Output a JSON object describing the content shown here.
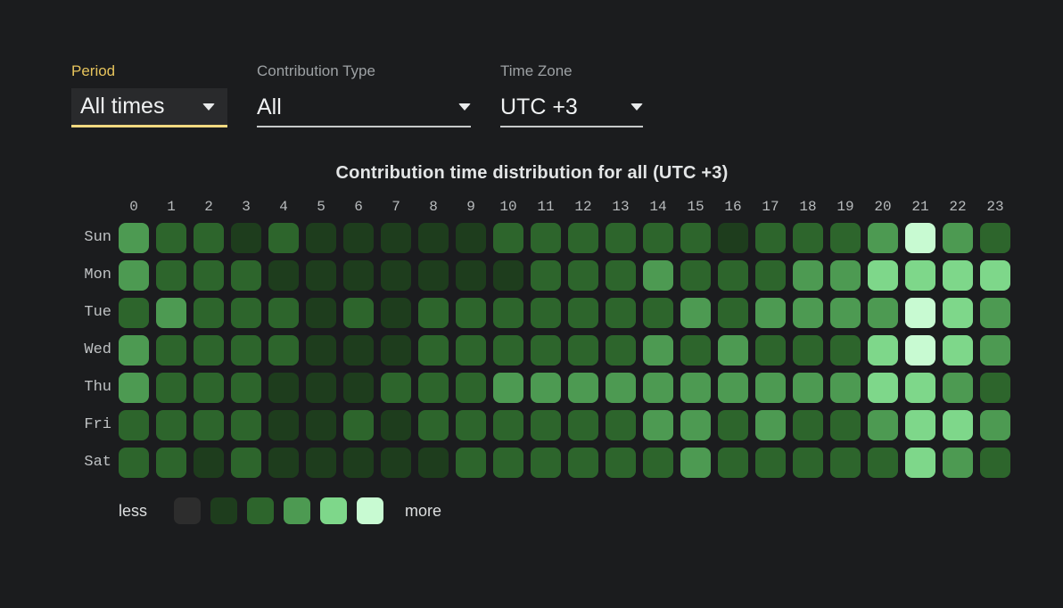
{
  "colors": {
    "background": "#1b1c1e",
    "accent_yellow_label": "#e6c35c",
    "accent_yellow_underline": "#f2d980",
    "filter_label_gray": "#9da1a4",
    "value_white": "#f0f2f3",
    "axis_label_gray": "#b8bbbd",
    "levels": [
      "#2d2d2d",
      "#1e3d1d",
      "#2d652c",
      "#4d9a52",
      "#7ed78a",
      "#c8fad2"
    ]
  },
  "filters": [
    {
      "label": "Period",
      "value": "All times",
      "active": true
    },
    {
      "label": "Contribution Type",
      "value": "All",
      "active": false
    },
    {
      "label": "Time Zone",
      "value": "UTC +3",
      "active": false
    }
  ],
  "chart_data": {
    "type": "heatmap",
    "title": "Contribution time distribution for all (UTC +3)",
    "x_labels": [
      "0",
      "1",
      "2",
      "3",
      "4",
      "5",
      "6",
      "7",
      "8",
      "9",
      "10",
      "11",
      "12",
      "13",
      "14",
      "15",
      "16",
      "17",
      "18",
      "19",
      "20",
      "21",
      "22",
      "23"
    ],
    "y_labels": [
      "Sun",
      "Mon",
      "Tue",
      "Wed",
      "Thu",
      "Fri",
      "Sat"
    ],
    "value_scale": "intensity level 0 (less) to 5 (more), mapped to colors.levels",
    "values": [
      [
        3,
        2,
        2,
        1,
        2,
        1,
        1,
        1,
        1,
        1,
        2,
        2,
        2,
        2,
        2,
        2,
        1,
        2,
        2,
        2,
        3,
        5,
        3,
        2
      ],
      [
        3,
        2,
        2,
        2,
        1,
        1,
        1,
        1,
        1,
        1,
        1,
        2,
        2,
        2,
        3,
        2,
        2,
        2,
        3,
        3,
        4,
        4,
        4,
        4
      ],
      [
        2,
        3,
        2,
        2,
        2,
        1,
        2,
        1,
        2,
        2,
        2,
        2,
        2,
        2,
        2,
        3,
        2,
        3,
        3,
        3,
        3,
        5,
        4,
        3
      ],
      [
        3,
        2,
        2,
        2,
        2,
        1,
        1,
        1,
        2,
        2,
        2,
        2,
        2,
        2,
        3,
        2,
        3,
        2,
        2,
        2,
        4,
        5,
        4,
        3
      ],
      [
        3,
        2,
        2,
        2,
        1,
        1,
        1,
        2,
        2,
        2,
        3,
        3,
        3,
        3,
        3,
        3,
        3,
        3,
        3,
        3,
        4,
        4,
        3,
        2
      ],
      [
        2,
        2,
        2,
        2,
        1,
        1,
        2,
        1,
        2,
        2,
        2,
        2,
        2,
        2,
        3,
        3,
        2,
        3,
        2,
        2,
        3,
        4,
        4,
        3
      ],
      [
        2,
        2,
        1,
        2,
        1,
        1,
        1,
        1,
        1,
        2,
        2,
        2,
        2,
        2,
        2,
        3,
        2,
        2,
        2,
        2,
        2,
        4,
        3,
        2
      ]
    ],
    "legend": {
      "less_label": "less",
      "more_label": "more",
      "legend_position": "bottom-left"
    },
    "grid": "off",
    "axis": {
      "x": "hour of day (0-23)",
      "y": "day of week"
    }
  }
}
